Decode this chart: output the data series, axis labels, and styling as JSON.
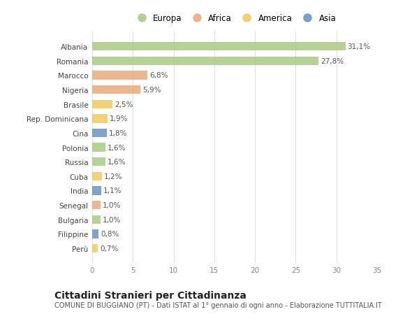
{
  "countries": [
    "Albania",
    "Romania",
    "Marocco",
    "Nigeria",
    "Brasile",
    "Rep. Dominicana",
    "Cina",
    "Polonia",
    "Russia",
    "Cuba",
    "India",
    "Senegal",
    "Bulgaria",
    "Filippine",
    "Perù"
  ],
  "values": [
    31.1,
    27.8,
    6.8,
    5.9,
    2.5,
    1.9,
    1.8,
    1.6,
    1.6,
    1.2,
    1.1,
    1.0,
    1.0,
    0.8,
    0.7
  ],
  "labels": [
    "31,1%",
    "27,8%",
    "6,8%",
    "5,9%",
    "2,5%",
    "1,9%",
    "1,8%",
    "1,6%",
    "1,6%",
    "1,2%",
    "1,1%",
    "1,0%",
    "1,0%",
    "0,8%",
    "0,7%"
  ],
  "continents": [
    "Europa",
    "Europa",
    "Africa",
    "Africa",
    "America",
    "America",
    "Asia",
    "Europa",
    "Europa",
    "America",
    "Asia",
    "Africa",
    "Europa",
    "Asia",
    "America"
  ],
  "colors": {
    "Europa": "#a8c880",
    "Africa": "#e8a878",
    "America": "#f0c858",
    "Asia": "#6090c0"
  },
  "xlim": [
    0,
    35
  ],
  "xticks": [
    0,
    5,
    10,
    15,
    20,
    25,
    30,
    35
  ],
  "bg_color": "#ffffff",
  "grid_color": "#e0e0e0",
  "bar_height": 0.6,
  "title": "Cittadini Stranieri per Cittadinanza",
  "subtitle": "COMUNE DI BUGGIANO (PT) - Dati ISTAT al 1° gennaio di ogni anno - Elaborazione TUTTITALIA.IT",
  "label_fontsize": 7.5,
  "tick_fontsize": 7.5,
  "xtick_fontsize": 7.5,
  "title_fontsize": 10,
  "subtitle_fontsize": 7,
  "legend_entries": [
    "Europa",
    "Africa",
    "America",
    "Asia"
  ]
}
